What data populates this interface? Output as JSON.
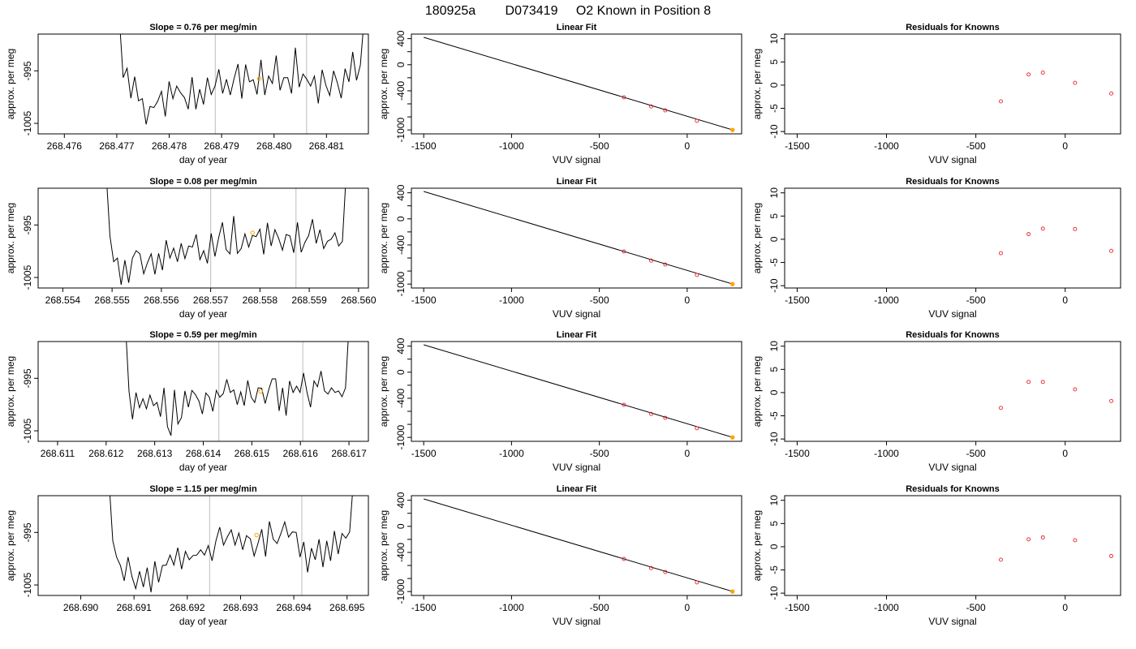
{
  "figure": {
    "title_parts": [
      "180925a",
      "D073419",
      "O2 Known in Position  8"
    ]
  },
  "colors": {
    "trace": "#000000",
    "marker_orange": "#ffa500",
    "residual_red": "#e8202a",
    "vline_gray": "#c8c8c8"
  },
  "chart_data": [
    {
      "type": "line",
      "row": 0,
      "col": 0,
      "title": "Slope =  0.76  per meg/min",
      "xlabel": "day of year",
      "ylabel": "approx. per meg",
      "xlim": [
        268.4755,
        268.4818
      ],
      "ylim": [
        -1007,
        -988
      ],
      "xticks": [
        "268.476",
        "268.477",
        "268.478",
        "268.479",
        "268.480",
        "268.481"
      ],
      "yticks": [
        "-1005",
        "-995"
      ],
      "start": 268.47705,
      "end": 268.48172,
      "vlines": [
        268.47888,
        268.48062
      ],
      "marker": {
        "x": 268.47972,
        "y": -996.5
      },
      "series": [
        {
          "values": [
            -985,
            -996.3,
            -994.5,
            -1000.2,
            -996.1,
            -1000.7,
            -1000.3,
            -1005.2,
            -1001.8,
            -1002,
            -1000.8,
            -998.9,
            -1003.7,
            -997,
            -1000.3,
            -997.9,
            -999.2,
            -1000.1,
            -1002.3,
            -996.2,
            -1002.3,
            -998.5,
            -1001.4,
            -996.3,
            -999.5,
            -997.9,
            -994.7,
            -999.3,
            -996.6,
            -999.6,
            -996.4,
            -993.7,
            -1000.3,
            -993.8,
            -997.1,
            -996.7,
            -999.5,
            -992.9,
            -999.6,
            -996,
            -997.4,
            -992.1,
            -998.7,
            -996.3,
            -996.3,
            -999.3,
            -990.6,
            -998.1,
            -995.6,
            -996.6,
            -997.9,
            -996,
            -1001.2,
            -994.8,
            -997.8,
            -999.7,
            -995,
            -997.3,
            -1000.2,
            -994.6,
            -997.1,
            -991.4,
            -996.8,
            -993.9,
            -985
          ]
        }
      ]
    },
    {
      "type": "line",
      "row": 0,
      "col": 1,
      "title": "Linear Fit",
      "xlabel": "VUV signal",
      "ylabel": "approx. per meg",
      "xlim": [
        -1570,
        310
      ],
      "ylim": [
        -1060,
        470
      ],
      "xticks": [
        -1500,
        -1000,
        -500,
        0
      ],
      "yticks": [
        400,
        0,
        -400,
        -1000
      ],
      "yticks_minor": [
        200,
        -200,
        -600,
        -800
      ],
      "fit_line": {
        "x": [
          -1500,
          260
        ],
        "y": [
          420,
          -1000
        ]
      },
      "points": {
        "x": [
          -360,
          -205,
          -125,
          55
        ],
        "y": [
          -500,
          -640,
          -700,
          -860
        ]
      },
      "marker": {
        "x": 258,
        "y": -1000
      }
    },
    {
      "type": "scatter",
      "row": 0,
      "col": 2,
      "title": "Residuals for Knowns",
      "xlabel": "VUV signal",
      "ylabel": "approx. per meg",
      "xlim": [
        -1570,
        310
      ],
      "ylim": [
        -10.5,
        11
      ],
      "xticks": [
        -1500,
        -1000,
        -500,
        0
      ],
      "yticks": [
        10,
        5,
        0,
        -5,
        -10
      ],
      "points": {
        "x": [
          -360,
          -205,
          -125,
          55,
          258
        ],
        "y": [
          -3.5,
          2.3,
          2.7,
          0.5,
          -1.8
        ]
      }
    },
    {
      "type": "line",
      "row": 1,
      "col": 0,
      "title": "Slope =  0.08  per meg/min",
      "xlabel": "day of year",
      "ylabel": "approx. per meg",
      "xlim": [
        268.5535,
        268.5602
      ],
      "ylim": [
        -1007,
        -988
      ],
      "xticks": [
        "268.554",
        "268.555",
        "268.556",
        "268.557",
        "268.558",
        "268.559",
        "268.560"
      ],
      "yticks": [
        "-1005",
        "-995"
      ],
      "start": 268.55488,
      "end": 268.55975,
      "vlines": [
        268.557,
        268.55873
      ],
      "marker": {
        "x": 268.55785,
        "y": -996.5
      },
      "series": [
        {
          "values": [
            -985,
            -997.1,
            -1002,
            -1001.3,
            -1006.4,
            -1001.7,
            -1006,
            -1001.3,
            -999.9,
            -1000.5,
            -1004.3,
            -1002.2,
            -1000.5,
            -1004.4,
            -1000.4,
            -1003.6,
            -997.9,
            -1001.3,
            -999.4,
            -1002,
            -998.5,
            -1001.4,
            -999,
            -999.2,
            -996.8,
            -1001.6,
            -999.9,
            -1002.3,
            -996.6,
            -1001,
            -997.4,
            -994.5,
            -999.7,
            -1000.5,
            -993.3,
            -1000.4,
            -999.5,
            -996.7,
            -999.2,
            -997,
            -997.2,
            -995.8,
            -1000.6,
            -994.6,
            -999,
            -995.9,
            -997.6,
            -999.8,
            -996.8,
            -997.1,
            -1000.3,
            -994.5,
            -1000.2,
            -998.3,
            -997,
            -993.9,
            -998.5,
            -995.9,
            -999.5,
            -998.1,
            -997.7,
            -996.5,
            -999,
            -998.1,
            -985
          ]
        }
      ]
    },
    {
      "type": "line",
      "row": 1,
      "col": 1,
      "title": "Linear Fit",
      "xlabel": "VUV signal",
      "ylabel": "approx. per meg",
      "xlim": [
        -1570,
        310
      ],
      "ylim": [
        -1060,
        470
      ],
      "xticks": [
        -1500,
        -1000,
        -500,
        0
      ],
      "yticks": [
        400,
        0,
        -400,
        -1000
      ],
      "yticks_minor": [
        200,
        -200,
        -600,
        -800
      ],
      "fit_line": {
        "x": [
          -1500,
          260
        ],
        "y": [
          420,
          -1000
        ]
      },
      "points": {
        "x": [
          -360,
          -205,
          -125,
          55
        ],
        "y": [
          -500,
          -640,
          -700,
          -860
        ]
      },
      "marker": {
        "x": 258,
        "y": -1000
      }
    },
    {
      "type": "scatter",
      "row": 1,
      "col": 2,
      "title": "Residuals for Knowns",
      "xlabel": "VUV signal",
      "ylabel": "approx. per meg",
      "xlim": [
        -1570,
        310
      ],
      "ylim": [
        -10.5,
        11
      ],
      "xticks": [
        -1500,
        -1000,
        -500,
        0
      ],
      "yticks": [
        10,
        5,
        0,
        -5,
        -10
      ],
      "points": {
        "x": [
          -360,
          -205,
          -125,
          55,
          258
        ],
        "y": [
          -3,
          1.1,
          2.3,
          2.2,
          -2.5
        ]
      }
    },
    {
      "type": "line",
      "row": 2,
      "col": 0,
      "title": "Slope =  0.59  per meg/min",
      "xlabel": "day of year",
      "ylabel": "approx. per meg",
      "xlim": [
        268.6106,
        268.6174
      ],
      "ylim": [
        -1007,
        -988
      ],
      "xticks": [
        "268.611",
        "268.612",
        "268.613",
        "268.614",
        "268.615",
        "268.616",
        "268.617"
      ],
      "yticks": [
        "-1005",
        "-995"
      ],
      "start": 268.6124,
      "end": 268.617,
      "vlines": [
        268.61432,
        268.61605
      ],
      "marker": {
        "x": 268.61518,
        "y": -997.5
      },
      "series": [
        {
          "values": [
            -985,
            -997.5,
            -1002.8,
            -997.7,
            -1000.6,
            -998.9,
            -1000.8,
            -998.2,
            -1000.2,
            -999.6,
            -1002.3,
            -996.8,
            -1004.2,
            -1005.9,
            -997.2,
            -1003.7,
            -1002.5,
            -997.4,
            -1000.5,
            -997.3,
            -998.1,
            -999.3,
            -1001.8,
            -997.8,
            -998.6,
            -1001.3,
            -997.3,
            -998.6,
            -997.9,
            -995.2,
            -997.7,
            -997.2,
            -1000,
            -997.6,
            -1000.2,
            -995.4,
            -998.6,
            -999.6,
            -996.8,
            -996.9,
            -999.8,
            -997.2,
            -995.1,
            -995.1,
            -1001.2,
            -996.8,
            -1002.1,
            -995.5,
            -997.7,
            -996.5,
            -997.7,
            -994,
            -997.7,
            -1000.5,
            -995.5,
            -996.6,
            -993.6,
            -997.4,
            -998,
            -996.8,
            -997.7,
            -997.4,
            -998.5,
            -996.8,
            -985
          ]
        }
      ]
    },
    {
      "type": "line",
      "row": 2,
      "col": 1,
      "title": "Linear Fit",
      "xlabel": "VUV signal",
      "ylabel": "approx. per meg",
      "xlim": [
        -1570,
        310
      ],
      "ylim": [
        -1060,
        470
      ],
      "xticks": [
        -1500,
        -1000,
        -500,
        0
      ],
      "yticks": [
        400,
        0,
        -400,
        -1000
      ],
      "yticks_minor": [
        200,
        -200,
        -600,
        -800
      ],
      "fit_line": {
        "x": [
          -1500,
          260
        ],
        "y": [
          420,
          -1000
        ]
      },
      "points": {
        "x": [
          -360,
          -205,
          -125,
          55
        ],
        "y": [
          -500,
          -640,
          -700,
          -860
        ]
      },
      "marker": {
        "x": 258,
        "y": -1000
      }
    },
    {
      "type": "scatter",
      "row": 2,
      "col": 2,
      "title": "Residuals for Knowns",
      "xlabel": "VUV signal",
      "ylabel": "approx. per meg",
      "xlim": [
        -1570,
        310
      ],
      "ylim": [
        -10.5,
        11
      ],
      "xticks": [
        -1500,
        -1000,
        -500,
        0
      ],
      "yticks": [
        10,
        5,
        0,
        -5,
        -10
      ],
      "points": {
        "x": [
          -360,
          -205,
          -125,
          55,
          258
        ],
        "y": [
          -3.3,
          2.3,
          2.3,
          0.7,
          -1.8
        ]
      }
    },
    {
      "type": "line",
      "row": 3,
      "col": 0,
      "title": "Slope =  1.15  per meg/min",
      "xlabel": "day of year",
      "ylabel": "approx. per meg",
      "xlim": [
        268.6892,
        268.6954
      ],
      "ylim": [
        -1007,
        -988
      ],
      "xticks": [
        "268.690",
        "268.691",
        "268.692",
        "268.693",
        "268.694",
        "268.695"
      ],
      "yticks": [
        "-1005",
        "-995"
      ],
      "start": 268.69053,
      "end": 268.69512,
      "vlines": [
        268.69242,
        268.69415
      ],
      "marker": {
        "x": 268.6933,
        "y": -995.5
      },
      "series": [
        {
          "values": [
            -985,
            -996.6,
            -999.7,
            -1001.3,
            -1004.2,
            -999.7,
            -1003.4,
            -1005.7,
            -1002.4,
            -1005.4,
            -1001.7,
            -1006.4,
            -1000.5,
            -1004.5,
            -1001.3,
            -1001.2,
            -999.3,
            -1001.2,
            -997.9,
            -1002,
            -998.6,
            -1000.2,
            -999.4,
            -999.3,
            -998.3,
            -999.3,
            -997.5,
            -1000.4,
            -996.6,
            -994,
            -997.4,
            -995.8,
            -994.5,
            -997.4,
            -995.1,
            -998.3,
            -995.6,
            -996.2,
            -999.5,
            -997.1,
            -994.4,
            -999.6,
            -992.9,
            -996.3,
            -997.1,
            -995.2,
            -993,
            -995.9,
            -994.9,
            -995,
            -999.7,
            -996.8,
            -1002.6,
            -998,
            -1000.2,
            -996.3,
            -1001.6,
            -996.6,
            -1000.4,
            -994.7,
            -999.1,
            -995.2,
            -996.1,
            -994.9,
            -985
          ]
        }
      ]
    },
    {
      "type": "line",
      "row": 3,
      "col": 1,
      "title": "Linear Fit",
      "xlabel": "VUV signal",
      "ylabel": "approx. per meg",
      "xlim": [
        -1570,
        310
      ],
      "ylim": [
        -1060,
        470
      ],
      "xticks": [
        -1500,
        -1000,
        -500,
        0
      ],
      "yticks": [
        400,
        0,
        -400,
        -1000
      ],
      "yticks_minor": [
        200,
        -200,
        -600,
        -800
      ],
      "fit_line": {
        "x": [
          -1500,
          260
        ],
        "y": [
          420,
          -1000
        ]
      },
      "points": {
        "x": [
          -360,
          -205,
          -125,
          55
        ],
        "y": [
          -500,
          -640,
          -700,
          -860
        ]
      },
      "marker": {
        "x": 258,
        "y": -1000
      }
    },
    {
      "type": "scatter",
      "row": 3,
      "col": 2,
      "title": "Residuals for Knowns",
      "xlabel": "VUV signal",
      "ylabel": "approx. per meg",
      "xlim": [
        -1570,
        310
      ],
      "ylim": [
        -10.5,
        11
      ],
      "xticks": [
        -1500,
        -1000,
        -500,
        0
      ],
      "yticks": [
        10,
        5,
        0,
        -5,
        -10
      ],
      "points": {
        "x": [
          -360,
          -205,
          -125,
          55,
          258
        ],
        "y": [
          -2.8,
          1.6,
          2,
          1.4,
          -2
        ]
      }
    }
  ]
}
